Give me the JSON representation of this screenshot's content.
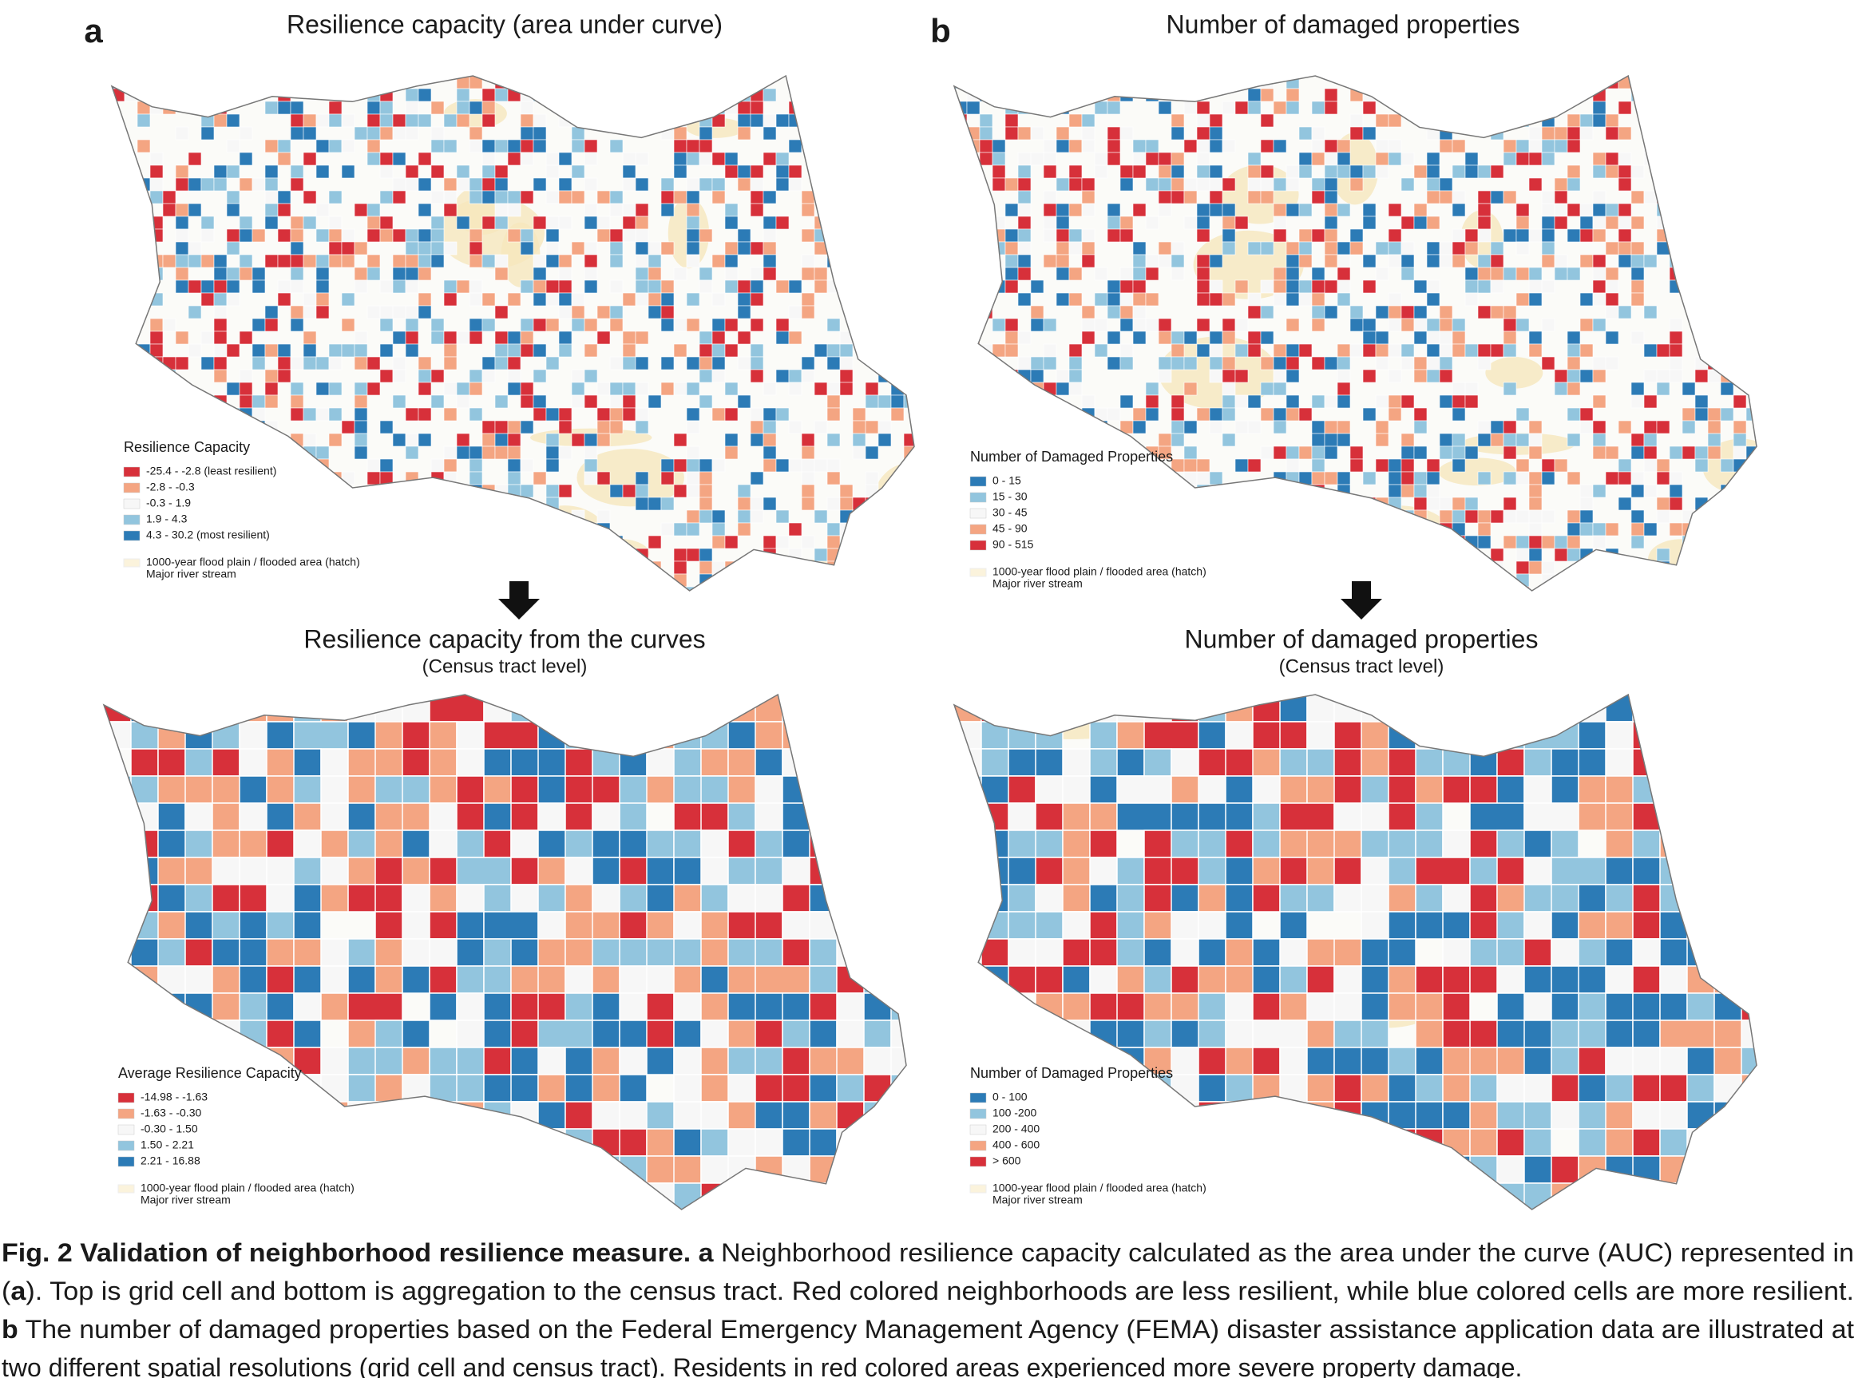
{
  "panels": [
    {
      "label": "a",
      "title": "Resilience capacity (area under curve)",
      "bottom_title": "Resilience capacity from the curves",
      "bottom_subtitle": "(Census tract level)",
      "top_legend": {
        "title": "Resilience Capacity",
        "items": [
          {
            "label": "-25.4 - -2.8 (least resilient)",
            "color": "#d7303a"
          },
          {
            "label": "-2.8 - -0.3",
            "color": "#f4a582"
          },
          {
            "label": "-0.3 - 1.9",
            "color": "#f7f7f7"
          },
          {
            "label": "1.9 - 4.3",
            "color": "#92c5de"
          },
          {
            "label": "4.3 - 30.2 (most resilient)",
            "color": "#2c7bb6"
          }
        ],
        "extra": [
          "1000-year flood plain / flooded area (hatch)",
          "Major river stream"
        ]
      },
      "bottom_legend": {
        "title": "Average Resilience Capacity",
        "items": [
          {
            "label": "-14.98 - -1.63",
            "color": "#d7303a"
          },
          {
            "label": "-1.63 - -0.30",
            "color": "#f4a582"
          },
          {
            "label": "-0.30 - 1.50",
            "color": "#f7f7f7"
          },
          {
            "label": "1.50 - 2.21",
            "color": "#92c5de"
          },
          {
            "label": "2.21 - 16.88",
            "color": "#2c7bb6"
          }
        ],
        "extra": [
          "1000-year flood plain / flooded area (hatch)",
          "Major river stream"
        ]
      }
    },
    {
      "label": "b",
      "title": "Number of damaged properties",
      "bottom_title": "Number of damaged properties",
      "bottom_subtitle": "(Census tract level)",
      "top_legend": {
        "title": "Number of Damaged Properties",
        "items": [
          {
            "label": "0 - 15",
            "color": "#2c7bb6"
          },
          {
            "label": "15 - 30",
            "color": "#92c5de"
          },
          {
            "label": "30 - 45",
            "color": "#f7f7f7"
          },
          {
            "label": "45 - 90",
            "color": "#f4a582"
          },
          {
            "label": "90 - 515",
            "color": "#d7303a"
          }
        ],
        "extra": [
          "1000-year flood plain / flooded area (hatch)",
          "Major river stream"
        ]
      },
      "bottom_legend": {
        "title": "Number of Damaged Properties",
        "items": [
          {
            "label": "0 - 100",
            "color": "#2c7bb6"
          },
          {
            "label": "100 -200",
            "color": "#92c5de"
          },
          {
            "label": "200 - 400",
            "color": "#f7f7f7"
          },
          {
            "label": "400 - 600",
            "color": "#f4a582"
          },
          {
            "label": "> 600",
            "color": "#d7303a"
          }
        ],
        "extra": [
          "1000-year flood plain / flooded area (hatch)",
          "Major river stream"
        ]
      }
    }
  ],
  "caption": {
    "lines": [
      [
        {
          "text": "Fig. 2 Validation of neighborhood resilience measure. a",
          "bold": true
        },
        {
          "text": " Neighborhood resilience capacity calculated as the area under the curve (AUC) represented in",
          "bold": false
        }
      ],
      [
        {
          "text": "(",
          "bold": false
        },
        {
          "text": "a",
          "bold": true
        },
        {
          "text": "). Top is grid cell and bottom is aggregation to the census tract. Red colored neighborhoods are less resilient, while blue colored cells are more resilient.",
          "bold": false
        }
      ],
      [
        {
          "text": "b",
          "bold": true
        },
        {
          "text": " The number of damaged properties based on the Federal Emergency Management Agency (FEMA) disaster assistance application data are illustrated at",
          "bold": false
        }
      ],
      [
        {
          "text": "two different spatial resolutions (grid cell and census tract). Residents in red colored areas experienced more severe property damage.",
          "bold": false
        }
      ]
    ]
  }
}
